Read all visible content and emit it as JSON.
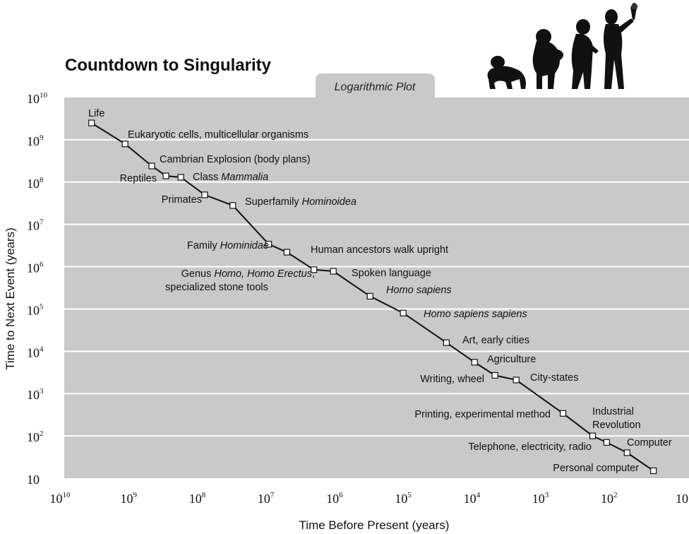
{
  "chart_data": {
    "type": "scatter",
    "title": "Countdown to Singularity",
    "subtitle": "Logarithmic Plot",
    "xlabel": "Time Before Present (years)",
    "ylabel": "Time to Next Event (years)",
    "x_scale": "log",
    "y_scale": "log",
    "x_reversed": true,
    "xlim": [
      10000000000,
      10
    ],
    "ylim": [
      10,
      10000000000
    ],
    "grid": true,
    "x_ticks": [
      {
        "base": "10",
        "exp": "10"
      },
      {
        "base": "10",
        "exp": "9"
      },
      {
        "base": "10",
        "exp": "8"
      },
      {
        "base": "10",
        "exp": "7"
      },
      {
        "base": "10",
        "exp": "6"
      },
      {
        "base": "10",
        "exp": "5"
      },
      {
        "base": "10",
        "exp": "4"
      },
      {
        "base": "10",
        "exp": "3"
      },
      {
        "base": "10",
        "exp": "2"
      },
      {
        "base": "10",
        "exp": ""
      }
    ],
    "y_ticks": [
      {
        "base": "10",
        "exp": "10"
      },
      {
        "base": "10",
        "exp": "9"
      },
      {
        "base": "10",
        "exp": "8"
      },
      {
        "base": "10",
        "exp": "7"
      },
      {
        "base": "10",
        "exp": "6"
      },
      {
        "base": "10",
        "exp": "5"
      },
      {
        "base": "10",
        "exp": "4"
      },
      {
        "base": "10",
        "exp": "3"
      },
      {
        "base": "10",
        "exp": "2"
      },
      {
        "base": "10",
        "exp": ""
      }
    ],
    "points": [
      {
        "x": 4000000000,
        "y": 2500000000
      },
      {
        "x": 1300000000,
        "y": 800000000
      },
      {
        "x": 530000000,
        "y": 240000000
      },
      {
        "x": 330000000,
        "y": 140000000
      },
      {
        "x": 200000000,
        "y": 130000000
      },
      {
        "x": 90000000,
        "y": 50000000
      },
      {
        "x": 35000000,
        "y": 28000000
      },
      {
        "x": 10500000,
        "y": 3400000
      },
      {
        "x": 5700000,
        "y": 2200000
      },
      {
        "x": 2300000,
        "y": 850000
      },
      {
        "x": 1200000,
        "y": 780000
      },
      {
        "x": 350000,
        "y": 200000
      },
      {
        "x": 115000,
        "y": 80000
      },
      {
        "x": 27000,
        "y": 16000
      },
      {
        "x": 10500,
        "y": 5500
      },
      {
        "x": 5300,
        "y": 2700
      },
      {
        "x": 2600,
        "y": 2100
      },
      {
        "x": 540,
        "y": 340
      },
      {
        "x": 200,
        "y": 100
      },
      {
        "x": 125,
        "y": 70
      },
      {
        "x": 63,
        "y": 40
      },
      {
        "x": 26,
        "y": 15
      }
    ],
    "labels": [
      {
        "parts": [
          {
            "t": "Life"
          }
        ]
      },
      {
        "parts": [
          {
            "t": "Eukaryotic cells, multicellular organisms"
          }
        ]
      },
      {
        "parts": [
          {
            "t": "Cambrian Explosion (body plans)"
          }
        ]
      },
      {
        "parts": [
          {
            "t": "Reptiles"
          }
        ]
      },
      {
        "parts": [
          {
            "t": "Class "
          },
          {
            "t": "Mammalia",
            "i": true
          }
        ]
      },
      {
        "parts": [
          {
            "t": "Primates"
          }
        ]
      },
      {
        "parts": [
          {
            "t": "Superfamily "
          },
          {
            "t": "Hominoidea",
            "i": true
          }
        ]
      },
      {
        "parts": [
          {
            "t": "Family "
          },
          {
            "t": "Hominidae",
            "i": true
          }
        ]
      },
      {
        "parts": [
          {
            "t": "Human ancestors walk upright"
          }
        ]
      },
      {
        "parts": [
          {
            "t": "Genus "
          },
          {
            "t": "Homo, Homo Erectus",
            "i": true
          },
          {
            "t": ","
          }
        ]
      },
      {
        "parts": [
          {
            "t": "specialized stone tools"
          }
        ]
      },
      {
        "parts": [
          {
            "t": "Spoken language"
          }
        ]
      },
      {
        "parts": [
          {
            "t": "Homo sapiens",
            "i": true
          }
        ]
      },
      {
        "parts": [
          {
            "t": "Homo sapiens sapiens",
            "i": true
          }
        ]
      },
      {
        "parts": [
          {
            "t": "Art, early cities"
          }
        ]
      },
      {
        "parts": [
          {
            "t": "Agriculture"
          }
        ]
      },
      {
        "parts": [
          {
            "t": "Writing, wheel"
          }
        ]
      },
      {
        "parts": [
          {
            "t": "City-states"
          }
        ]
      },
      {
        "parts": [
          {
            "t": "Printing, experimental method"
          }
        ]
      },
      {
        "parts": [
          {
            "t": "Industrial"
          }
        ]
      },
      {
        "parts": [
          {
            "t": "Revolution"
          }
        ]
      },
      {
        "parts": [
          {
            "t": "Computer"
          }
        ]
      },
      {
        "parts": [
          {
            "t": "Telephone,  electricity, radio"
          }
        ]
      },
      {
        "parts": [
          {
            "t": "Personal computer"
          }
        ]
      }
    ]
  },
  "colors": {
    "plot_background": "#c9c9c9",
    "gridline": "#ffffff",
    "line": "#111111",
    "marker_fill": "#ffffff"
  },
  "decoration": {
    "icon": "human-evolution-silhouette-icon"
  }
}
